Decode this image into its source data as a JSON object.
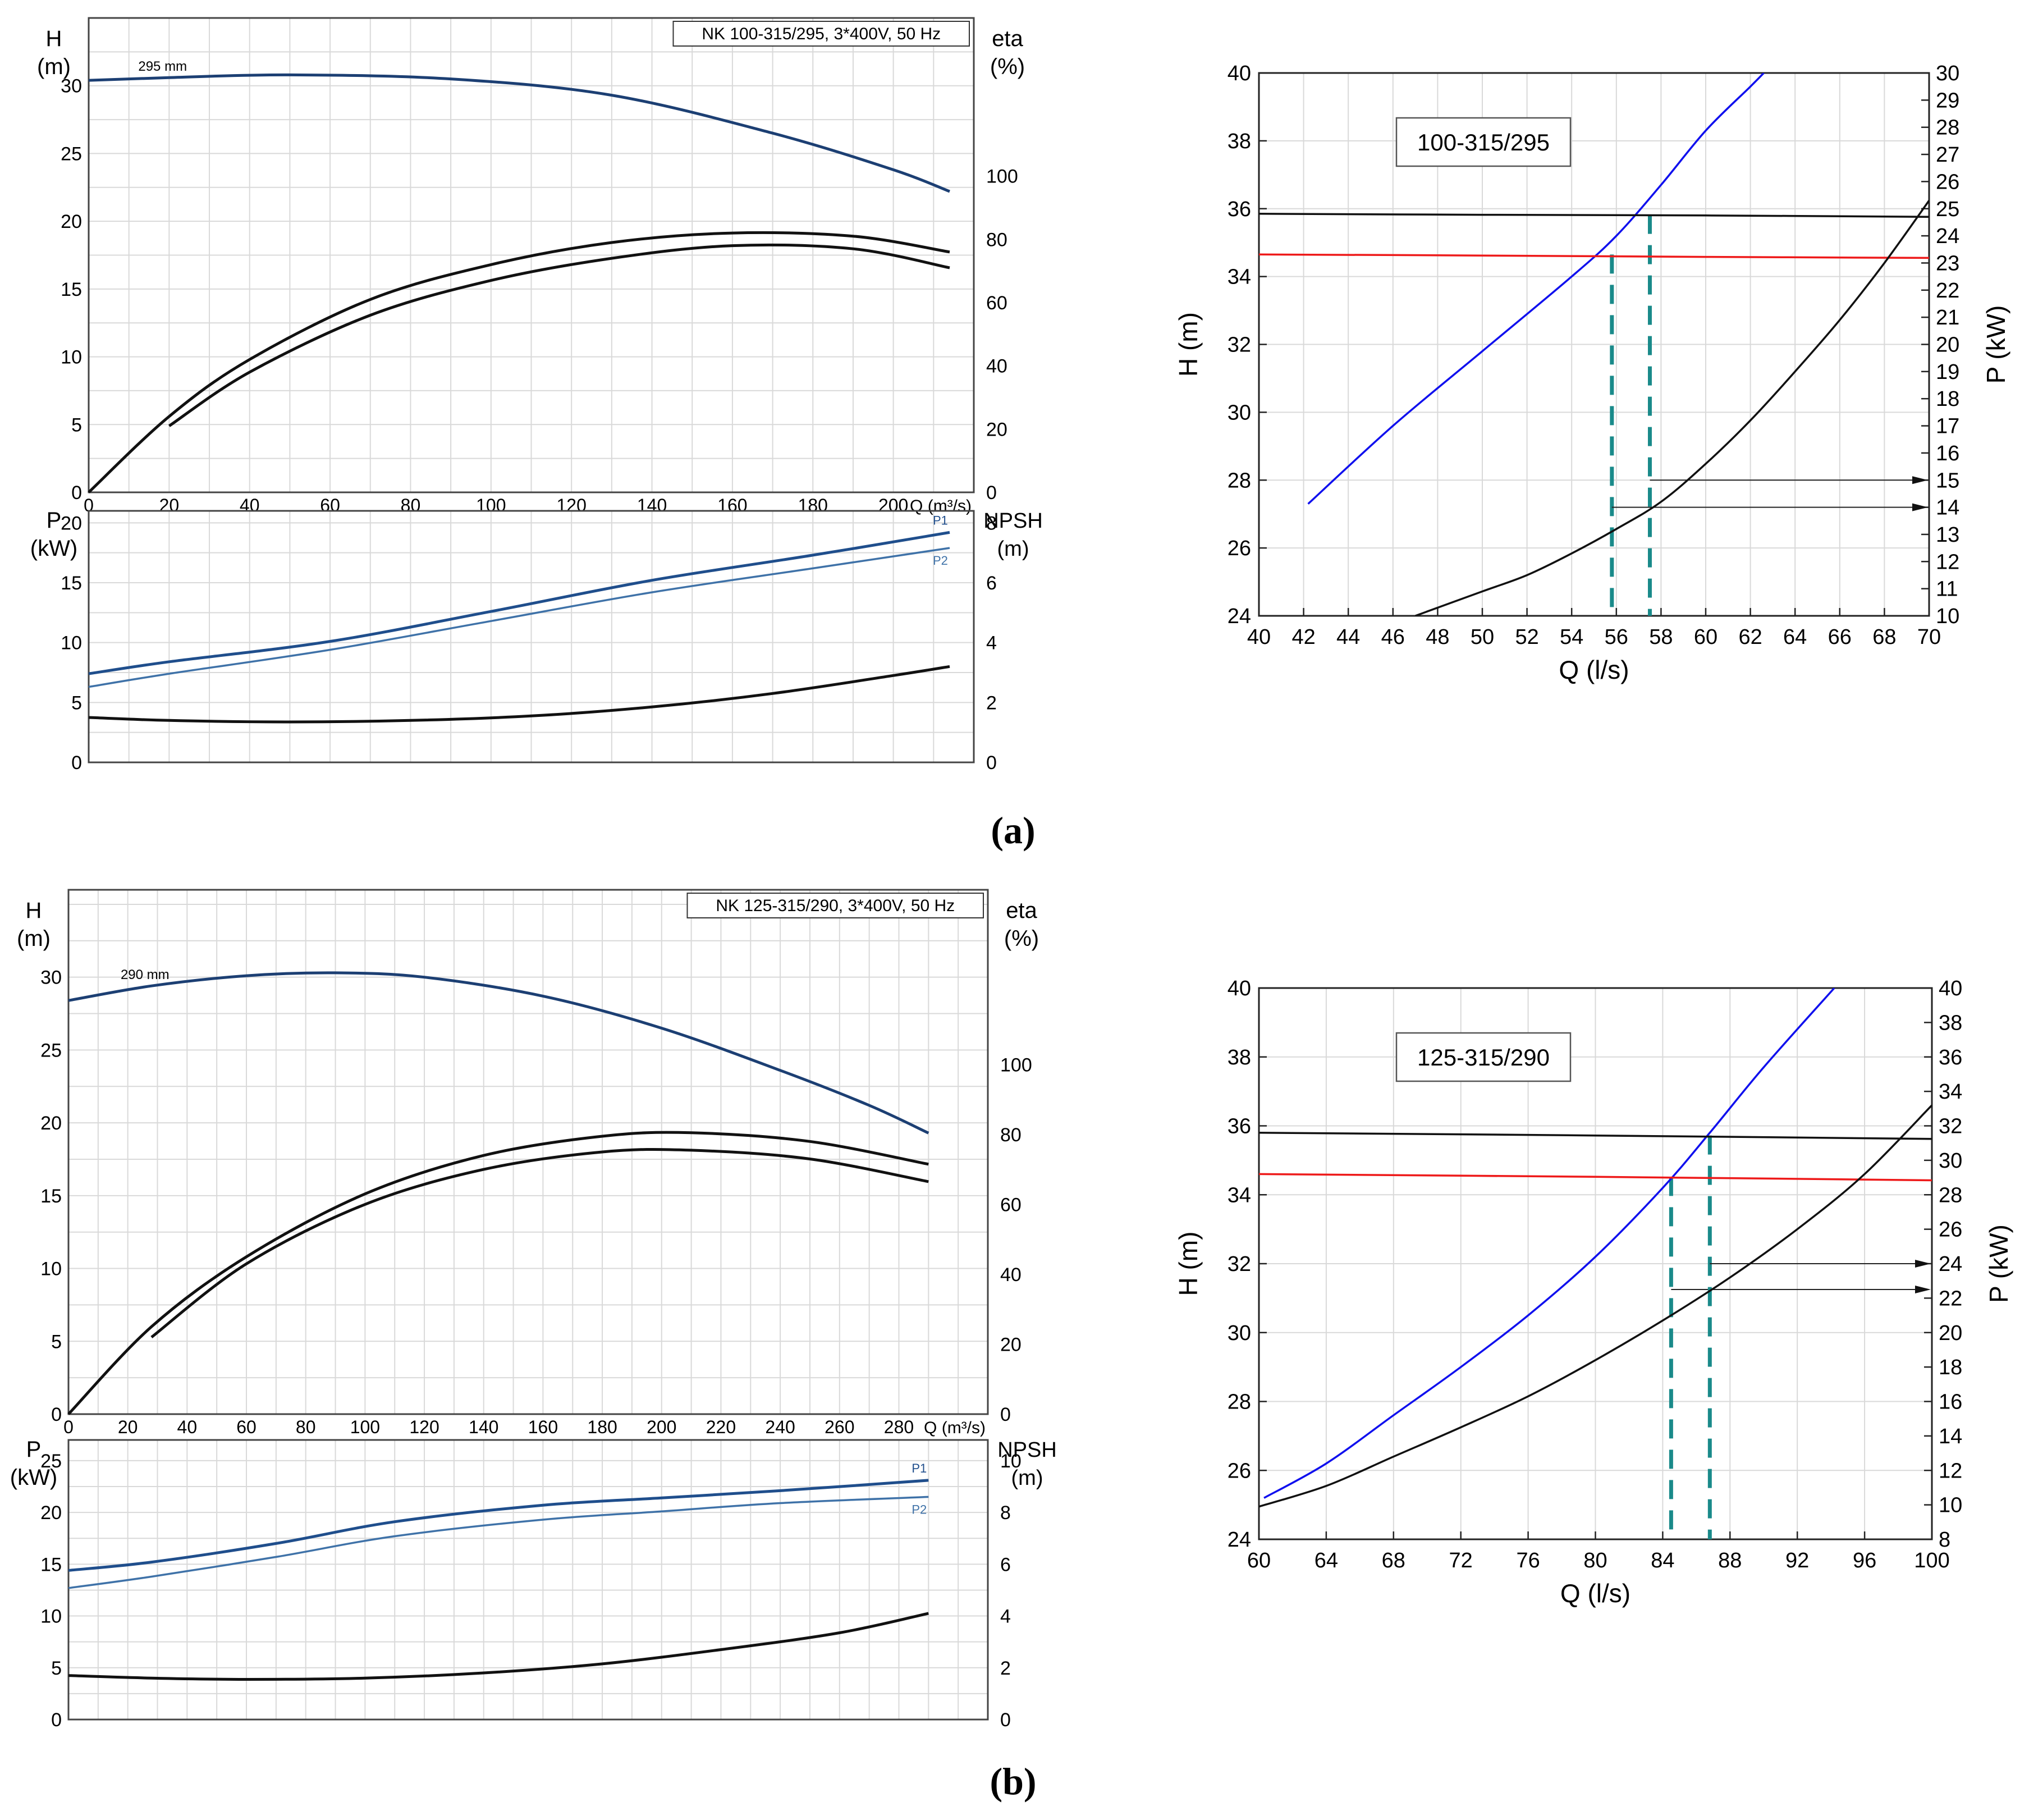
{
  "panel_labels": [
    "(a)",
    "(b)"
  ],
  "colors": {
    "head_blue": "#1c3f73",
    "p1_blue": "#1f4e8c",
    "p2_blue": "#3f72a8",
    "grid": "#d9d9d9",
    "op_blue": "#1010ee",
    "op_red": "#ee1a1a",
    "op_teal": "#1a8a8a",
    "black": "#111111"
  },
  "chart_data": [
    {
      "id": "a-left",
      "type": "line",
      "title": "NK 100-315/295, 3*400V, 50 Hz",
      "top": {
        "ylabel": [
          "H",
          "(m)"
        ],
        "y2label": [
          "eta",
          "(%)"
        ],
        "xlabel": "Q (m³/s)",
        "xlim": [
          0,
          220
        ],
        "ylim": [
          0,
          35
        ],
        "y2lim": [
          0,
          150
        ],
        "xticks": [
          0,
          20,
          40,
          60,
          80,
          100,
          120,
          140,
          160,
          180,
          200
        ],
        "yticks": [
          0,
          5,
          10,
          15,
          20,
          25,
          30
        ],
        "y2ticks": [
          0,
          20,
          40,
          60,
          80,
          100
        ],
        "annotation": "295 mm",
        "series": [
          {
            "name": "H",
            "axis": "left",
            "color": "head_blue",
            "x": [
              0,
              20,
              50,
              90,
              130,
              170,
              200,
              214
            ],
            "y": [
              30.4,
              30.6,
              30.8,
              30.5,
              29.3,
              26.5,
              23.8,
              22.2
            ]
          },
          {
            "name": "eta (upper)",
            "axis": "right",
            "color": "black",
            "x": [
              0,
              20,
              40,
              70,
              100,
              130,
              160,
              190,
              214
            ],
            "y": [
              0,
              24,
              42,
              61,
              72,
              79,
              82,
              81,
              76
            ]
          },
          {
            "name": "eta (lower)",
            "axis": "right",
            "color": "black",
            "x": [
              20,
              40,
              70,
              100,
              130,
              160,
              190,
              214
            ],
            "y": [
              21,
              38,
              56,
              67,
              74,
              78,
              77,
              71
            ]
          }
        ]
      },
      "bottom": {
        "ylabel": [
          "P",
          "(kW)"
        ],
        "y2label": [
          "NPSH",
          "(m)"
        ],
        "ylim": [
          0,
          21
        ],
        "y2lim": [
          0,
          8.4
        ],
        "yticks": [
          0,
          5,
          10,
          15,
          20
        ],
        "y2ticks": [
          0,
          2,
          4,
          6,
          8
        ],
        "series": [
          {
            "name": "P1",
            "axis": "left",
            "color": "p1_blue",
            "x": [
              0,
              20,
              60,
              100,
              140,
              180,
              214
            ],
            "y": [
              7.4,
              8.4,
              10.1,
              12.6,
              15.2,
              17.3,
              19.2
            ]
          },
          {
            "name": "P2",
            "axis": "left",
            "color": "p2_blue",
            "x": [
              0,
              20,
              60,
              100,
              140,
              180,
              214
            ],
            "y": [
              6.3,
              7.4,
              9.4,
              11.8,
              14.2,
              16.2,
              17.9
            ]
          },
          {
            "name": "NPSH",
            "axis": "right",
            "color": "black",
            "x": [
              0,
              20,
              50,
              80,
              110,
              140,
              170,
              200,
              214
            ],
            "y": [
              1.5,
              1.4,
              1.35,
              1.4,
              1.55,
              1.85,
              2.3,
              2.9,
              3.2
            ]
          }
        ]
      }
    },
    {
      "id": "a-right",
      "type": "line",
      "title": "100-315/295",
      "xlabel": "Q (l/s)",
      "ylabel": "H (m)",
      "y2label": "P (kW)",
      "xlim": [
        40,
        70
      ],
      "ylim": [
        24,
        40
      ],
      "y2lim": [
        10,
        30
      ],
      "xticks": [
        40,
        42,
        44,
        46,
        48,
        50,
        52,
        54,
        56,
        58,
        60,
        62,
        64,
        66,
        68,
        70
      ],
      "yticks": [
        24,
        26,
        28,
        30,
        32,
        34,
        36,
        38,
        40
      ],
      "y2ticks": [
        10,
        11,
        12,
        13,
        14,
        15,
        16,
        17,
        18,
        19,
        20,
        21,
        22,
        23,
        24,
        25,
        26,
        27,
        28,
        29,
        30
      ],
      "series": [
        {
          "name": "system curve",
          "axis": "left",
          "color": "op_blue",
          "x": [
            42.2,
            46,
            50,
            54,
            56,
            58,
            60,
            62,
            62.6
          ],
          "y": [
            27.3,
            29.6,
            31.8,
            34.0,
            35.2,
            36.7,
            38.3,
            39.6,
            40.0
          ]
        },
        {
          "name": "pump head 1",
          "axis": "left",
          "color": "black",
          "x": [
            40,
            50,
            60,
            70
          ],
          "y": [
            35.85,
            35.82,
            35.8,
            35.76
          ]
        },
        {
          "name": "pump head 2",
          "axis": "left",
          "color": "op_red",
          "x": [
            40,
            50,
            60,
            70
          ],
          "y": [
            34.65,
            34.62,
            34.58,
            34.55
          ]
        },
        {
          "name": "power",
          "axis": "right",
          "color": "black",
          "x": [
            47,
            50,
            52,
            54,
            56,
            58,
            60,
            62,
            64,
            66,
            68,
            70
          ],
          "y": [
            10.0,
            10.9,
            11.5,
            12.3,
            13.2,
            14.2,
            15.6,
            17.2,
            19.0,
            20.9,
            23.0,
            25.3
          ]
        }
      ],
      "operating_points": [
        {
          "q": 55.8,
          "h": 34.65,
          "p": 14
        },
        {
          "q": 57.5,
          "h": 35.82,
          "p": 15
        }
      ]
    },
    {
      "id": "b-left",
      "type": "line",
      "title": "NK 125-315/290, 3*400V, 50 Hz",
      "top": {
        "ylabel": [
          "H",
          "(m)"
        ],
        "y2label": [
          "eta",
          "(%)"
        ],
        "xlabel": "Q (m³/s)",
        "xlim": [
          0,
          310
        ],
        "ylim": [
          0,
          36
        ],
        "y2lim": [
          0,
          150
        ],
        "xticks": [
          0,
          20,
          40,
          60,
          80,
          100,
          120,
          140,
          160,
          180,
          200,
          220,
          240,
          260,
          280
        ],
        "yticks": [
          0,
          5,
          10,
          15,
          20,
          25,
          30
        ],
        "y2ticks": [
          0,
          20,
          40,
          60,
          80,
          100
        ],
        "annotation": "290 mm",
        "series": [
          {
            "name": "H",
            "axis": "left",
            "color": "head_blue",
            "x": [
              0,
              28,
              60,
              90,
              120,
              160,
              200,
              240,
              270,
              290
            ],
            "y": [
              28.4,
              29.4,
              30.1,
              30.3,
              30.0,
              28.7,
              26.5,
              23.6,
              21.2,
              19.3
            ]
          },
          {
            "name": "eta (upper)",
            "axis": "right",
            "color": "black",
            "x": [
              0,
              28,
              60,
              100,
              140,
              180,
              210,
              250,
              290
            ],
            "y": [
              0,
              25,
              45,
              63,
              74,
              79.5,
              80.5,
              78,
              71.5
            ]
          },
          {
            "name": "eta (lower)",
            "axis": "right",
            "color": "black",
            "x": [
              28,
              60,
              100,
              140,
              180,
              210,
              250,
              290
            ],
            "y": [
              22,
              43,
              60,
              70,
              75,
              75.5,
              73,
              66.5
            ]
          }
        ]
      },
      "bottom": {
        "ylabel": [
          "P",
          "(kW)"
        ],
        "y2label": [
          "NPSH",
          "(m)"
        ],
        "ylim": [
          0,
          27
        ],
        "y2lim": [
          0,
          10.8
        ],
        "yticks": [
          0,
          5,
          10,
          15,
          20,
          25
        ],
        "y2ticks": [
          0,
          2,
          4,
          6,
          8,
          10
        ],
        "series": [
          {
            "name": "P1",
            "axis": "left",
            "color": "p1_blue",
            "x": [
              0,
              28,
              70,
              110,
              160,
              200,
              240,
              290
            ],
            "y": [
              14.4,
              15.2,
              17.0,
              19.1,
              20.7,
              21.4,
              22.1,
              23.1
            ]
          },
          {
            "name": "P2",
            "axis": "left",
            "color": "p2_blue",
            "x": [
              0,
              28,
              70,
              110,
              160,
              200,
              240,
              290
            ],
            "y": [
              12.7,
              13.8,
              15.7,
              17.7,
              19.3,
              20.1,
              20.9,
              21.5
            ]
          },
          {
            "name": "NPSH",
            "axis": "right",
            "color": "black",
            "x": [
              0,
              28,
              60,
              100,
              140,
              180,
              220,
              260,
              290
            ],
            "y": [
              1.7,
              1.6,
              1.55,
              1.6,
              1.8,
              2.15,
              2.7,
              3.35,
              4.1
            ]
          }
        ]
      }
    },
    {
      "id": "b-right",
      "type": "line",
      "title": "125-315/290",
      "xlabel": "Q (l/s)",
      "ylabel": "H (m)",
      "y2label": "P (kW)",
      "xlim": [
        60,
        100
      ],
      "ylim": [
        24,
        40
      ],
      "y2lim": [
        8,
        40
      ],
      "xticks": [
        60,
        64,
        68,
        72,
        76,
        80,
        84,
        88,
        92,
        96,
        100
      ],
      "yticks": [
        24,
        26,
        28,
        30,
        32,
        34,
        36,
        38,
        40
      ],
      "y2ticks": [
        8,
        10,
        12,
        14,
        16,
        18,
        20,
        22,
        24,
        26,
        28,
        30,
        32,
        34,
        36,
        38,
        40
      ],
      "series": [
        {
          "name": "system curve",
          "axis": "left",
          "color": "op_blue",
          "x": [
            60.3,
            64,
            68,
            72,
            76,
            80,
            84,
            86.8,
            90,
            94.2
          ],
          "y": [
            25.2,
            26.2,
            27.6,
            29.0,
            30.5,
            32.2,
            34.2,
            35.8,
            37.7,
            40.0
          ]
        },
        {
          "name": "pump head 1",
          "axis": "left",
          "color": "black",
          "x": [
            60,
            80,
            100
          ],
          "y": [
            35.8,
            35.72,
            35.62
          ]
        },
        {
          "name": "pump head 2",
          "axis": "left",
          "color": "op_red",
          "x": [
            60,
            80,
            100
          ],
          "y": [
            34.6,
            34.52,
            34.42
          ]
        },
        {
          "name": "power",
          "axis": "right",
          "color": "black",
          "x": [
            60,
            64,
            68,
            72,
            76,
            80,
            84,
            88,
            92,
            96,
            100
          ],
          "y": [
            9.9,
            11.1,
            12.8,
            14.5,
            16.3,
            18.4,
            20.7,
            23.2,
            26.0,
            29.2,
            33.2
          ]
        }
      ],
      "operating_points": [
        {
          "q": 84.5,
          "h": 34.52,
          "p": 22.5
        },
        {
          "q": 86.8,
          "h": 35.72,
          "p": 24
        }
      ]
    }
  ]
}
